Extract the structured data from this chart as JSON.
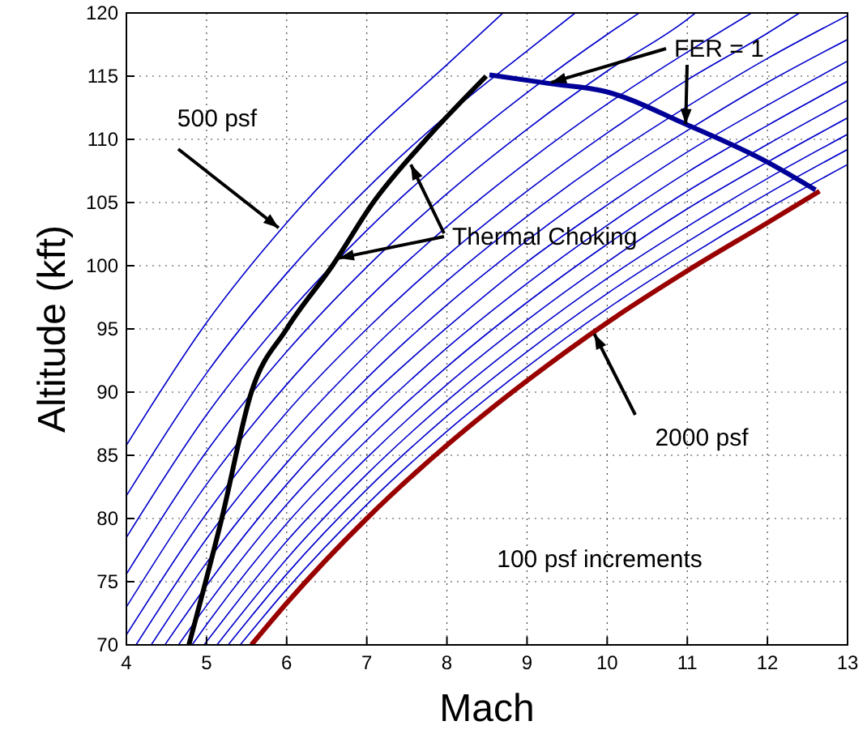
{
  "chart_data": {
    "type": "line",
    "xlabel": "Mach",
    "ylabel": "Altitude (kft)",
    "xlim": [
      4,
      13
    ],
    "ylim": [
      70,
      120
    ],
    "xticks": [
      4,
      5,
      6,
      7,
      8,
      9,
      10,
      11,
      12,
      13
    ],
    "yticks": [
      70,
      75,
      80,
      85,
      90,
      95,
      100,
      105,
      110,
      115,
      120
    ],
    "grid": true,
    "marker": "none",
    "line_style": "solid",
    "series": [
      {
        "color": "#0000cc",
        "x": [
          4,
          5,
          6,
          7,
          8,
          8.7
        ],
        "values": [
          85.8,
          95.5,
          103.4,
          110.1,
          115.9,
          120
        ]
      },
      {
        "color": "#0000cc",
        "x": [
          4,
          5,
          6,
          7,
          8,
          9,
          9.6
        ],
        "values": [
          81.8,
          91.5,
          99.4,
          106.1,
          111.9,
          117.0,
          120
        ]
      },
      {
        "color": "#0000cc",
        "x": [
          4,
          5,
          6,
          7,
          8,
          9,
          10,
          10.4
        ],
        "values": [
          78.5,
          88.2,
          96.1,
          102.8,
          108.6,
          113.7,
          118.3,
          120
        ]
      },
      {
        "color": "#0000cc",
        "x": [
          4,
          5,
          6,
          7,
          8,
          9,
          10,
          11,
          11.1
        ],
        "values": [
          75.6,
          85.3,
          93.2,
          99.9,
          105.7,
          110.8,
          115.4,
          119.5,
          120
        ]
      },
      {
        "color": "#0000cc",
        "x": [
          4,
          5,
          6,
          7,
          8,
          9,
          10,
          11,
          11.8
        ],
        "values": [
          73.0,
          82.7,
          90.6,
          97.3,
          103.1,
          108.2,
          112.8,
          116.9,
          120
        ]
      },
      {
        "color": "#0000cc",
        "x": [
          4,
          5,
          6,
          7,
          8,
          9,
          10,
          11,
          12,
          12.4
        ],
        "values": [
          70.8,
          80.4,
          88.4,
          95.0,
          100.8,
          105.9,
          110.5,
          114.7,
          118.4,
          120
        ]
      },
      {
        "color": "#0000cc",
        "x": [
          4.12,
          5,
          6,
          7,
          8,
          9,
          10,
          11,
          12,
          13
        ],
        "values": [
          70,
          78.4,
          86.3,
          93.0,
          98.8,
          103.9,
          108.5,
          112.6,
          116.4,
          119.8
        ]
      },
      {
        "color": "#0000cc",
        "x": [
          4.31,
          5,
          6,
          7,
          8,
          9,
          10,
          11,
          12,
          13
        ],
        "values": [
          70,
          76.5,
          84.4,
          91.1,
          96.9,
          102.0,
          106.6,
          110.7,
          114.5,
          117.9
        ]
      },
      {
        "color": "#0000cc",
        "x": [
          4.48,
          5,
          6,
          7,
          8,
          9,
          10,
          11,
          12,
          13
        ],
        "values": [
          70,
          74.7,
          82.7,
          89.4,
          95.1,
          100.3,
          104.8,
          109.0,
          112.7,
          116.2
        ]
      },
      {
        "color": "#0000cc",
        "x": [
          4.65,
          5,
          6,
          7,
          8,
          9,
          10,
          11,
          12,
          13
        ],
        "values": [
          70,
          73.1,
          81.1,
          87.7,
          93.5,
          98.6,
          103.2,
          107.4,
          111.1,
          114.6
        ]
      },
      {
        "color": "#0000cc",
        "x": [
          4.82,
          5,
          6,
          7,
          8,
          9,
          10,
          11,
          12,
          13
        ],
        "values": [
          70,
          71.6,
          79.6,
          86.2,
          92.0,
          97.1,
          101.7,
          105.9,
          109.6,
          113.1
        ]
      },
      {
        "color": "#0000cc",
        "x": [
          4.97,
          6,
          7,
          8,
          9,
          10,
          11,
          12,
          13
        ],
        "values": [
          70,
          78.2,
          84.8,
          90.6,
          95.7,
          100.3,
          104.5,
          108.2,
          111.7
        ]
      },
      {
        "color": "#0000cc",
        "x": [
          5.13,
          6,
          7,
          8,
          9,
          10,
          11,
          12,
          13
        ],
        "values": [
          70,
          76.8,
          83.5,
          89.3,
          94.4,
          99.0,
          103.1,
          106.9,
          110.4
        ]
      },
      {
        "color": "#0000cc",
        "x": [
          5.27,
          6,
          7,
          8,
          9,
          10,
          11,
          12,
          13
        ],
        "values": [
          70,
          75.6,
          82.3,
          88.1,
          93.2,
          97.8,
          101.9,
          105.7,
          109.2
        ]
      },
      {
        "color": "#0000cc",
        "x": [
          5.42,
          6,
          7,
          8,
          9,
          10,
          11,
          12,
          13
        ],
        "values": [
          70,
          74.4,
          81.1,
          86.9,
          92.0,
          96.6,
          100.7,
          104.5,
          108.0
        ]
      },
      {
        "color": "#990000",
        "x": [
          5.56,
          6,
          7,
          8,
          9,
          10,
          11,
          12,
          12.65
        ],
        "values": [
          70,
          73.3,
          80.0,
          85.8,
          90.9,
          95.5,
          99.6,
          103.4,
          105.9
        ]
      },
      {
        "color": "#000000",
        "x": [
          4.78,
          5.19,
          5.56,
          6.0,
          6.57,
          7.08,
          7.74,
          8.49
        ],
        "values": [
          70,
          80,
          90,
          95,
          100,
          105,
          110,
          115
        ]
      },
      {
        "color": "#000099",
        "x": [
          8.53,
          9.3,
          9.97,
          10.98,
          12.0,
          12.6
        ],
        "values": [
          115.1,
          114.4,
          113.8,
          111.2,
          108.2,
          106.0
        ]
      }
    ],
    "annotations": [
      {
        "text": "500 psf",
        "x": 5.9,
        "y": 103
      },
      {
        "text": "Thermal Choking",
        "x": 6.65,
        "y": 100.6
      },
      {
        "text": "FER = 1",
        "x": 9.3,
        "y": 114.5
      },
      {
        "text": "2000 psf",
        "x": 9.84,
        "y": 94.6
      },
      "100 psf increments"
    ]
  }
}
